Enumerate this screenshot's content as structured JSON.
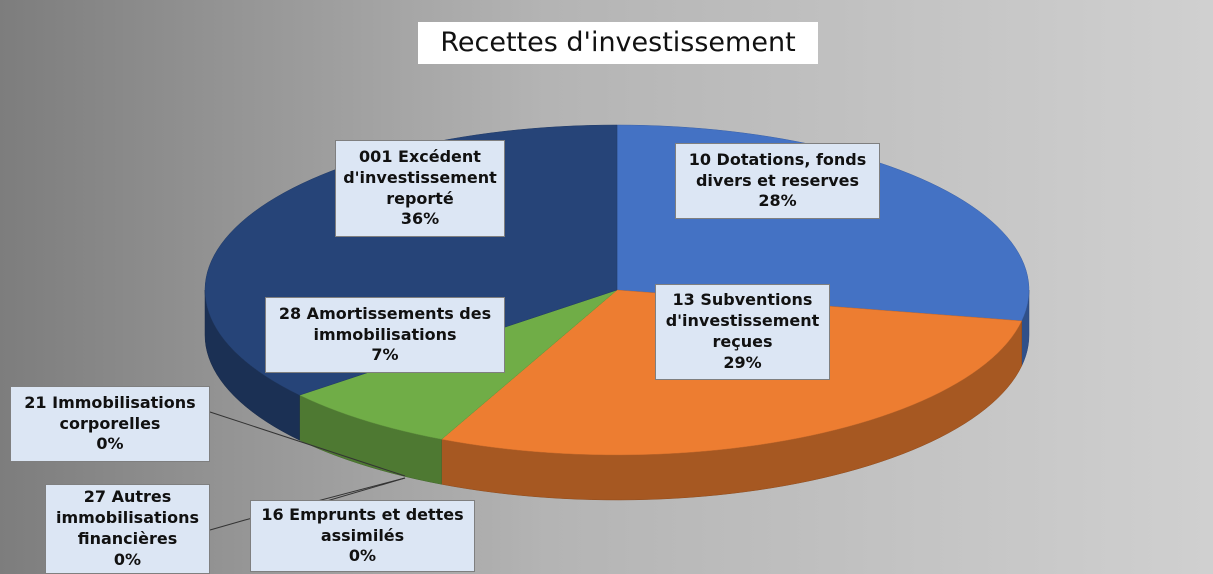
{
  "chart_data": {
    "type": "pie",
    "title": "Recettes d'investissement",
    "categories": [
      "10 Dotations, fonds divers et reserves",
      "13 Subventions d'investissement reçues",
      "16 Emprunts et dettes assimilés",
      "27 Autres immobilisations financières",
      "21 Immobilisations corporelles",
      "28 Amortissements des immobilisations",
      "001 Excédent d'investissement reporté"
    ],
    "values": [
      28,
      29,
      0,
      0,
      0,
      7,
      36
    ],
    "value_labels": [
      "28%",
      "29%",
      "0%",
      "0%",
      "0%",
      "7%",
      "36%"
    ],
    "colors": [
      "#4472c4",
      "#ed7d31",
      "#a5a5a5",
      "#5b9bd5",
      "#ffc000",
      "#70ad47",
      "#264478"
    ]
  }
}
